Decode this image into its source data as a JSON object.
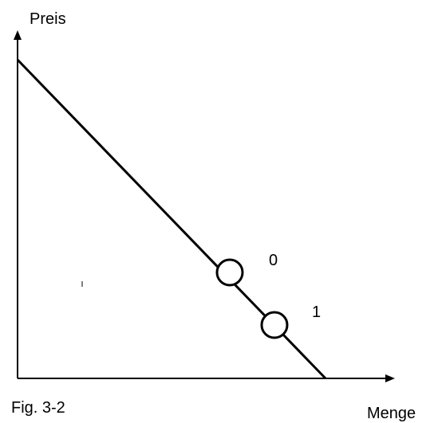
{
  "axes": {
    "y_label": "Preis",
    "x_label": "Menge"
  },
  "points": [
    {
      "label": "0"
    },
    {
      "label": "1"
    }
  ],
  "caption": "Fig. 3-2"
}
